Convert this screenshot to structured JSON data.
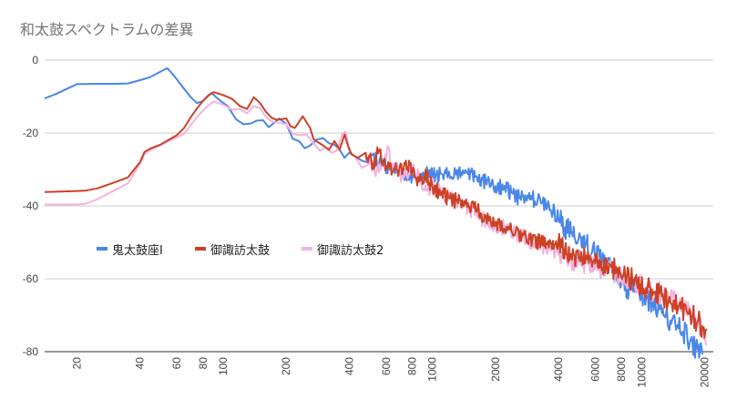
{
  "chart_data": {
    "type": "line",
    "title": "和太鼓スペクトラムの差異",
    "xlabel": "",
    "ylabel": "",
    "x_scale": "log",
    "ylim": [
      -80,
      0
    ],
    "xlim": [
      14,
      22000
    ],
    "y_ticks": [
      0,
      -20,
      -40,
      -60,
      -80
    ],
    "x_ticks": [
      20,
      40,
      60,
      80,
      100,
      200,
      400,
      600,
      800,
      1000,
      2000,
      4000,
      6000,
      8000,
      10000,
      20000
    ],
    "grid": {
      "horizontal": true,
      "vertical": false
    },
    "legend_position": "center-left",
    "series": [
      {
        "name": "鬼太鼓座I",
        "color": "#4a86e8",
        "points": [
          [
            14,
            -10.5
          ],
          [
            16,
            -9.2
          ],
          [
            18,
            -7.8
          ],
          [
            20,
            -6.6
          ],
          [
            25,
            -6.5
          ],
          [
            30,
            -6.5
          ],
          [
            35,
            -6.4
          ],
          [
            40,
            -5.5
          ],
          [
            45,
            -4.6
          ],
          [
            50,
            -3.2
          ],
          [
            54,
            -2.2
          ],
          [
            58,
            -4.2
          ],
          [
            64,
            -7.4
          ],
          [
            70,
            -10.2
          ],
          [
            75,
            -11.8
          ],
          [
            80,
            -11.2
          ],
          [
            88,
            -9.0
          ],
          [
            95,
            -10.8
          ],
          [
            105,
            -12.6
          ],
          [
            115,
            -16.2
          ],
          [
            125,
            -17.6
          ],
          [
            135,
            -17.4
          ],
          [
            145,
            -16.6
          ],
          [
            155,
            -16.5
          ],
          [
            165,
            -18.4
          ],
          [
            175,
            -17.2
          ],
          [
            185,
            -16.0
          ],
          [
            200,
            -17.5
          ],
          [
            215,
            -21.6
          ],
          [
            230,
            -22.2
          ],
          [
            245,
            -24.2
          ],
          [
            260,
            -23.4
          ],
          [
            280,
            -21.8
          ],
          [
            300,
            -21.4
          ],
          [
            320,
            -22.8
          ],
          [
            340,
            -23.2
          ],
          [
            360,
            -24.6
          ],
          [
            380,
            -26.8
          ],
          [
            400,
            -25.4
          ],
          [
            430,
            -26.6
          ],
          [
            460,
            -27.6
          ],
          [
            500,
            -28.2
          ],
          [
            540,
            -27.2
          ],
          [
            580,
            -29.0
          ],
          [
            620,
            -29.2
          ],
          [
            680,
            -30.4
          ],
          [
            740,
            -31.2
          ],
          [
            800,
            -32.0
          ],
          [
            850,
            -32.4
          ],
          [
            900,
            -30.8
          ],
          [
            1000,
            -31.8
          ],
          [
            1100,
            -31.2
          ],
          [
            1200,
            -30.6
          ],
          [
            1300,
            -31.4
          ],
          [
            1400,
            -30.2
          ],
          [
            1600,
            -32.0
          ],
          [
            1800,
            -33.4
          ],
          [
            2000,
            -34.6
          ],
          [
            2200,
            -35.2
          ],
          [
            2400,
            -36.4
          ],
          [
            2600,
            -37.8
          ],
          [
            2800,
            -38.4
          ],
          [
            3000,
            -38.0
          ],
          [
            3300,
            -39.2
          ],
          [
            3600,
            -39.6
          ],
          [
            4000,
            -43.4
          ],
          [
            4300,
            -45.8
          ],
          [
            4600,
            -47.4
          ],
          [
            5000,
            -48.8
          ],
          [
            5400,
            -50.6
          ],
          [
            5800,
            -52.6
          ],
          [
            6300,
            -54.2
          ],
          [
            6800,
            -56.2
          ],
          [
            7400,
            -58.6
          ],
          [
            8000,
            -60.8
          ],
          [
            8700,
            -62.6
          ],
          [
            9500,
            -63.6
          ],
          [
            10500,
            -65.2
          ],
          [
            11500,
            -67.2
          ],
          [
            12500,
            -69.4
          ],
          [
            13700,
            -71.4
          ],
          [
            15000,
            -73.6
          ],
          [
            16500,
            -75.6
          ],
          [
            17500,
            -77.8
          ],
          [
            18500,
            -79.4
          ],
          [
            19500,
            -80.8
          ]
        ]
      },
      {
        "name": "御諏訪太鼓",
        "color": "#cc4125",
        "points": [
          [
            14,
            -36.2
          ],
          [
            16,
            -36.1
          ],
          [
            18,
            -36.0
          ],
          [
            20,
            -35.9
          ],
          [
            22,
            -35.8
          ],
          [
            25,
            -35.2
          ],
          [
            30,
            -33.6
          ],
          [
            35,
            -32.2
          ],
          [
            40,
            -28.0
          ],
          [
            42,
            -25.2
          ],
          [
            45,
            -24.2
          ],
          [
            50,
            -23.2
          ],
          [
            55,
            -21.8
          ],
          [
            60,
            -20.6
          ],
          [
            65,
            -18.6
          ],
          [
            70,
            -15.6
          ],
          [
            75,
            -13.2
          ],
          [
            80,
            -11.2
          ],
          [
            85,
            -9.6
          ],
          [
            90,
            -8.8
          ],
          [
            100,
            -9.6
          ],
          [
            110,
            -10.6
          ],
          [
            120,
            -12.6
          ],
          [
            130,
            -13.4
          ],
          [
            140,
            -10.2
          ],
          [
            150,
            -11.8
          ],
          [
            160,
            -14.2
          ],
          [
            170,
            -15.8
          ],
          [
            180,
            -16.4
          ],
          [
            200,
            -16.0
          ],
          [
            210,
            -18.2
          ],
          [
            220,
            -18.6
          ],
          [
            240,
            -15.4
          ],
          [
            260,
            -18.6
          ],
          [
            270,
            -21.6
          ],
          [
            285,
            -22.6
          ],
          [
            300,
            -23.4
          ],
          [
            320,
            -24.6
          ],
          [
            340,
            -22.2
          ],
          [
            360,
            -24.6
          ],
          [
            380,
            -20.4
          ],
          [
            395,
            -23.6
          ],
          [
            410,
            -25.8
          ],
          [
            440,
            -26.8
          ],
          [
            480,
            -25.4
          ],
          [
            520,
            -28.4
          ],
          [
            550,
            -25.6
          ],
          [
            580,
            -27.6
          ],
          [
            620,
            -29.4
          ],
          [
            680,
            -30.2
          ],
          [
            740,
            -28.6
          ],
          [
            800,
            -30.6
          ],
          [
            860,
            -33.4
          ],
          [
            920,
            -31.2
          ],
          [
            1000,
            -34.8
          ],
          [
            1100,
            -36.8
          ],
          [
            1200,
            -37.8
          ],
          [
            1300,
            -38.6
          ],
          [
            1400,
            -39.8
          ],
          [
            1500,
            -40.2
          ],
          [
            1700,
            -42.0
          ],
          [
            1900,
            -44.2
          ],
          [
            2100,
            -44.8
          ],
          [
            2300,
            -45.8
          ],
          [
            2500,
            -47.2
          ],
          [
            2800,
            -48.6
          ],
          [
            3000,
            -49.4
          ],
          [
            3300,
            -50.0
          ],
          [
            3600,
            -51.4
          ],
          [
            4000,
            -49.6
          ],
          [
            4300,
            -52.0
          ],
          [
            4600,
            -53.2
          ],
          [
            5000,
            -54.4
          ],
          [
            5500,
            -54.4
          ],
          [
            6000,
            -55.8
          ],
          [
            6500,
            -57.0
          ],
          [
            7000,
            -55.8
          ],
          [
            7600,
            -58.4
          ],
          [
            8200,
            -58.6
          ],
          [
            8800,
            -59.8
          ],
          [
            9500,
            -61.4
          ],
          [
            10500,
            -62.6
          ],
          [
            11500,
            -63.8
          ],
          [
            12500,
            -64.8
          ],
          [
            13700,
            -66.2
          ],
          [
            15000,
            -67.4
          ],
          [
            16500,
            -69.2
          ],
          [
            18000,
            -71.0
          ],
          [
            19500,
            -73.0
          ],
          [
            20500,
            -73.8
          ]
        ]
      },
      {
        "name": "御諏訪太鼓2",
        "color": "#f4b2e0",
        "points": [
          [
            14,
            -39.6
          ],
          [
            16,
            -39.6
          ],
          [
            18,
            -39.6
          ],
          [
            20,
            -39.6
          ],
          [
            22,
            -39.4
          ],
          [
            25,
            -38.2
          ],
          [
            30,
            -35.8
          ],
          [
            35,
            -33.8
          ],
          [
            40,
            -28.4
          ],
          [
            42,
            -25.8
          ],
          [
            45,
            -24.6
          ],
          [
            50,
            -23.4
          ],
          [
            55,
            -22.2
          ],
          [
            60,
            -21.2
          ],
          [
            65,
            -20.2
          ],
          [
            70,
            -17.8
          ],
          [
            75,
            -15.6
          ],
          [
            80,
            -13.8
          ],
          [
            85,
            -12.4
          ],
          [
            90,
            -11.4
          ],
          [
            100,
            -12.2
          ],
          [
            110,
            -13.6
          ],
          [
            120,
            -13.4
          ],
          [
            130,
            -14.6
          ],
          [
            140,
            -12.6
          ],
          [
            150,
            -13.2
          ],
          [
            160,
            -15.6
          ],
          [
            170,
            -16.8
          ],
          [
            185,
            -17.2
          ],
          [
            200,
            -17.6
          ],
          [
            215,
            -20.2
          ],
          [
            230,
            -20.6
          ],
          [
            250,
            -20.4
          ],
          [
            270,
            -22.8
          ],
          [
            290,
            -24.8
          ],
          [
            310,
            -24.0
          ],
          [
            330,
            -25.4
          ],
          [
            350,
            -24.8
          ],
          [
            370,
            -20.2
          ],
          [
            385,
            -19.6
          ],
          [
            400,
            -24.8
          ],
          [
            430,
            -26.8
          ],
          [
            460,
            -29.6
          ],
          [
            500,
            -28.4
          ],
          [
            540,
            -30.4
          ],
          [
            580,
            -27.4
          ],
          [
            610,
            -23.6
          ],
          [
            640,
            -28.6
          ],
          [
            700,
            -31.2
          ],
          [
            760,
            -32.4
          ],
          [
            820,
            -30.2
          ],
          [
            880,
            -33.8
          ],
          [
            950,
            -35.2
          ],
          [
            1000,
            -34.6
          ],
          [
            1100,
            -36.6
          ],
          [
            1200,
            -37.4
          ],
          [
            1300,
            -38.6
          ],
          [
            1400,
            -40.2
          ],
          [
            1500,
            -40.8
          ],
          [
            1700,
            -43.2
          ],
          [
            1900,
            -44.6
          ],
          [
            2100,
            -45.6
          ],
          [
            2300,
            -46.6
          ],
          [
            2500,
            -47.8
          ],
          [
            2800,
            -48.8
          ],
          [
            3000,
            -50.0
          ],
          [
            3300,
            -50.8
          ],
          [
            3600,
            -52.0
          ],
          [
            4000,
            -53.4
          ],
          [
            4300,
            -52.4
          ],
          [
            4600,
            -54.4
          ],
          [
            5000,
            -55.2
          ],
          [
            5500,
            -55.8
          ],
          [
            6000,
            -57.2
          ],
          [
            6500,
            -58.0
          ],
          [
            7000,
            -56.8
          ],
          [
            7600,
            -58.8
          ],
          [
            8200,
            -59.8
          ],
          [
            8800,
            -60.2
          ],
          [
            9500,
            -61.4
          ],
          [
            10500,
            -62.2
          ],
          [
            11500,
            -63.6
          ],
          [
            12500,
            -64.2
          ],
          [
            13700,
            -65.4
          ],
          [
            15000,
            -66.6
          ],
          [
            16500,
            -68.2
          ],
          [
            18000,
            -70.4
          ],
          [
            19500,
            -73.6
          ],
          [
            20500,
            -78.0
          ]
        ]
      }
    ]
  }
}
